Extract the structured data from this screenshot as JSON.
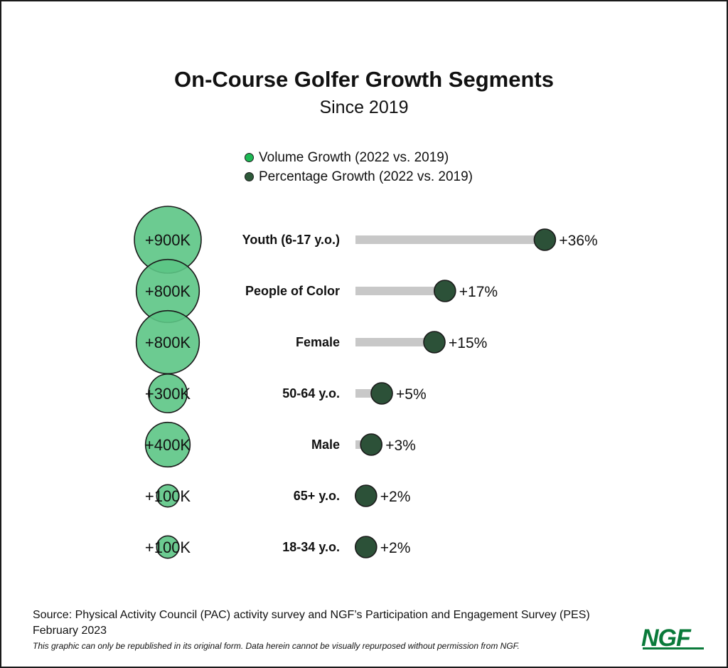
{
  "chart_data": {
    "type": "bubble-dot",
    "title": "On-Course Golfer Growth Segments",
    "subtitle": "Since 2019",
    "legend": [
      {
        "label": "Volume Growth (2022 vs. 2019)",
        "color": "#1db954"
      },
      {
        "label": "Percentage Growth (2022 vs. 2019)",
        "color": "#2e5a3a"
      }
    ],
    "categories": [
      "Youth (6-17 y.o.)",
      "People of Color",
      "Female",
      "50-64 y.o.",
      "Male",
      "65+ y.o.",
      "18-34 y.o."
    ],
    "series": [
      {
        "name": "Volume Growth (2022 vs. 2019)",
        "values": [
          900000,
          800000,
          800000,
          300000,
          400000,
          100000,
          100000
        ],
        "labels": [
          "+900K",
          "+800K",
          "+800K",
          "+300K",
          "+400K",
          "+100K",
          "+100K"
        ]
      },
      {
        "name": "Percentage Growth (2022 vs. 2019)",
        "values": [
          36,
          17,
          15,
          5,
          3,
          2,
          2
        ],
        "labels": [
          "+36%",
          "+17%",
          "+15%",
          "+5%",
          "+3%",
          "+2%",
          "+2%"
        ]
      }
    ]
  },
  "colors": {
    "volume_fill": "#5cc585",
    "percent_fill": "#2c5138",
    "bar": "#c8c8c8",
    "outline": "#1a1a1a",
    "logo": "#0a7a3a"
  },
  "footer": {
    "source": "Source: Physical Activity Council (PAC) activity survey and NGF’s Participation and Engagement Survey (PES)",
    "date": "February 2023",
    "note": "This graphic can only be republished in its original form. Data herein cannot be visually repurposed without permission from NGF."
  },
  "logo": {
    "text": "NGF"
  }
}
